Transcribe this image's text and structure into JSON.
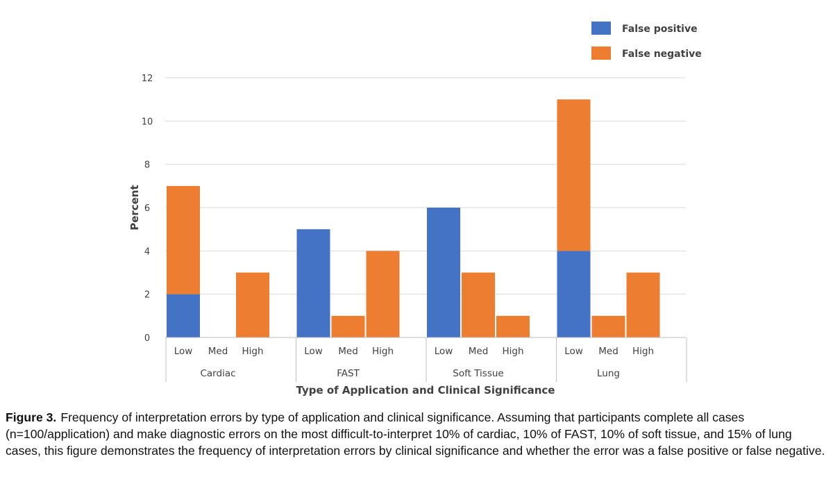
{
  "chart_data": {
    "type": "bar",
    "stacked": true,
    "title": "",
    "ylabel": "Percent",
    "xlabel": "Type of Application and Clinical Significance",
    "ylim": [
      0,
      12
    ],
    "yticks": [
      0,
      2,
      4,
      6,
      8,
      10,
      12
    ],
    "grid": true,
    "legend_position": "top-right",
    "groups": [
      {
        "name": "Cardiac",
        "categories": [
          "Low",
          "Med",
          "High"
        ]
      },
      {
        "name": "FAST",
        "categories": [
          "Low",
          "Med",
          "High"
        ]
      },
      {
        "name": "Soft Tissue",
        "categories": [
          "Low",
          "Med",
          "High"
        ]
      },
      {
        "name": "Lung",
        "categories": [
          "Low",
          "Med",
          "High"
        ]
      }
    ],
    "series": [
      {
        "name": "False positive",
        "color": "#4472c4",
        "values": [
          2,
          0,
          0,
          5,
          0,
          0,
          6,
          0,
          0,
          4,
          0,
          0
        ]
      },
      {
        "name": "False negative",
        "color": "#ed7d31",
        "values": [
          5,
          0,
          3,
          0,
          1,
          4,
          0,
          3,
          1,
          7,
          1,
          3
        ]
      }
    ]
  },
  "caption": {
    "label": "Figure 3.",
    "text": "Frequency of interpretation errors by type of application and clinical significance. Assuming that participants complete all cases (n=100/application) and make diagnostic errors on the most difficult-to-interpret 10% of cardiac, 10% of FAST, 10% of soft tissue, and 15% of lung cases, this figure demonstrates the frequency of interpretation errors by clinical significance and whether the error was a false positive or false negative."
  }
}
